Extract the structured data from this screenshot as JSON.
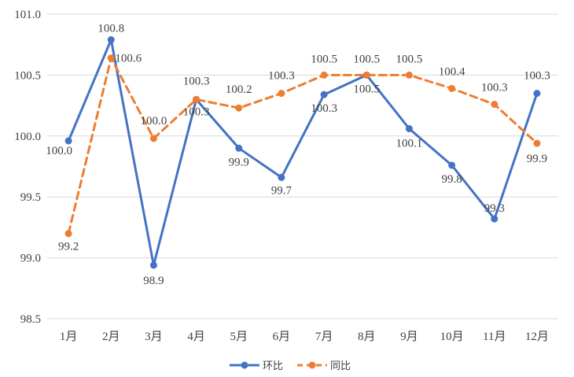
{
  "chart_data": {
    "type": "line",
    "categories": [
      "1月",
      "2月",
      "3月",
      "4月",
      "5月",
      "6月",
      "7月",
      "8月",
      "9月",
      "10月",
      "11月",
      "12月"
    ],
    "ylim": [
      98.5,
      101.0
    ],
    "yticks": [
      "98.5",
      "99.0",
      "99.5",
      "100.0",
      "100.5",
      "101.0"
    ],
    "grid": true,
    "legend_position": "bottom",
    "series": [
      {
        "name": "环比",
        "color": "#4472c4",
        "dash": "solid",
        "values": [
          99.96,
          100.79,
          98.94,
          100.3,
          99.9,
          99.66,
          100.34,
          100.5,
          100.06,
          99.76,
          99.32,
          100.35
        ],
        "labels": [
          "100.0",
          "100.8",
          "98.9",
          "100.3",
          "99.9",
          "99.7",
          "100.3",
          "100.5",
          "100.1",
          "99.8",
          "99.3",
          "100.3"
        ]
      },
      {
        "name": "同比",
        "color": "#ed7d31",
        "dash": "dashed",
        "values": [
          99.2,
          100.64,
          99.98,
          100.3,
          100.23,
          100.35,
          100.5,
          100.5,
          100.5,
          100.39,
          100.26,
          99.94
        ],
        "labels": [
          "99.2",
          "100.6",
          "100.0",
          "100.3",
          "100.2",
          "100.3",
          "100.5",
          "100.5",
          "100.5",
          "100.4",
          "100.3",
          "99.9"
        ]
      }
    ]
  }
}
